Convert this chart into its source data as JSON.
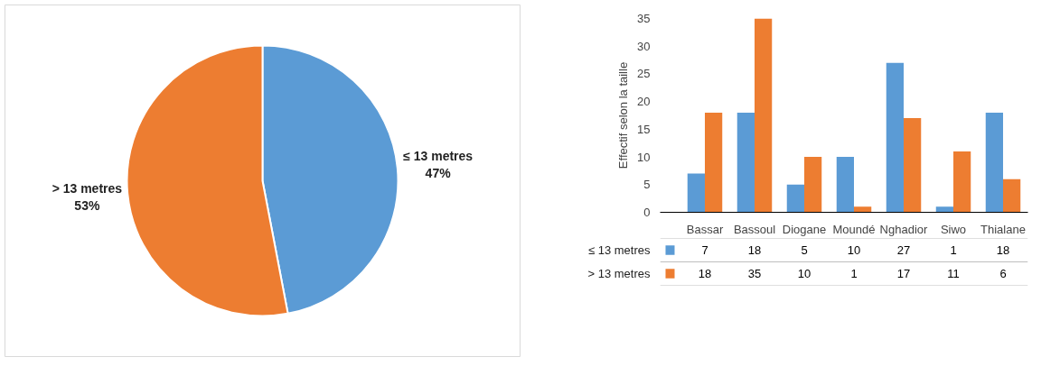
{
  "chart_data": [
    {
      "type": "pie",
      "categories": [
        "≤ 13 metres",
        "> 13 metres"
      ],
      "values": [
        47,
        53
      ],
      "colors": [
        "#5b9bd5",
        "#ed7d31"
      ],
      "value_labels": [
        "47%",
        "53%"
      ]
    },
    {
      "type": "bar",
      "categories": [
        "Bassar",
        "Bassoul",
        "Diogane",
        "Moundé",
        "Nghadior",
        "Siwo",
        "Thialane"
      ],
      "ylabel": "Effectif selon la taille",
      "ylim": [
        0,
        35
      ],
      "yticks": [
        0,
        5,
        10,
        15,
        20,
        25,
        30,
        35
      ],
      "grid": false,
      "legend": "bottom",
      "data_labels": true,
      "series": [
        {
          "name": "≤ 13 metres",
          "color": "#5b9bd5",
          "values": [
            7,
            18,
            5,
            10,
            27,
            1,
            18
          ]
        },
        {
          "name": "> 13 metres",
          "color": "#ed7d31",
          "values": [
            18,
            35,
            10,
            1,
            17,
            11,
            6
          ]
        }
      ]
    }
  ]
}
